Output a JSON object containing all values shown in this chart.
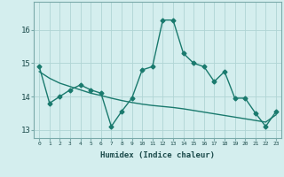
{
  "xlabel": "Humidex (Indice chaleur)",
  "x": [
    0,
    1,
    2,
    3,
    4,
    5,
    6,
    7,
    8,
    9,
    10,
    11,
    12,
    13,
    14,
    15,
    16,
    17,
    18,
    19,
    20,
    21,
    22,
    23
  ],
  "y_main": [
    14.9,
    13.8,
    14.0,
    14.2,
    14.35,
    14.2,
    14.1,
    13.1,
    13.55,
    13.95,
    14.8,
    14.9,
    16.3,
    16.3,
    15.3,
    15.0,
    14.9,
    14.45,
    14.75,
    13.95,
    13.95,
    13.5,
    13.1,
    13.55
  ],
  "y_trend": [
    14.75,
    14.55,
    14.4,
    14.3,
    14.2,
    14.1,
    14.03,
    13.95,
    13.88,
    13.82,
    13.77,
    13.73,
    13.7,
    13.67,
    13.63,
    13.58,
    13.53,
    13.48,
    13.43,
    13.38,
    13.33,
    13.28,
    13.23,
    13.45
  ],
  "line_color": "#1a7a6e",
  "bg_color": "#d4eeee",
  "grid_color": "#b0d4d4",
  "ylim": [
    12.75,
    16.85
  ],
  "yticks": [
    13,
    14,
    15,
    16
  ],
  "xticks": [
    0,
    1,
    2,
    3,
    4,
    5,
    6,
    7,
    8,
    9,
    10,
    11,
    12,
    13,
    14,
    15,
    16,
    17,
    18,
    19,
    20,
    21,
    22,
    23
  ],
  "marker": "D",
  "markersize": 2.5,
  "linewidth": 1.0
}
